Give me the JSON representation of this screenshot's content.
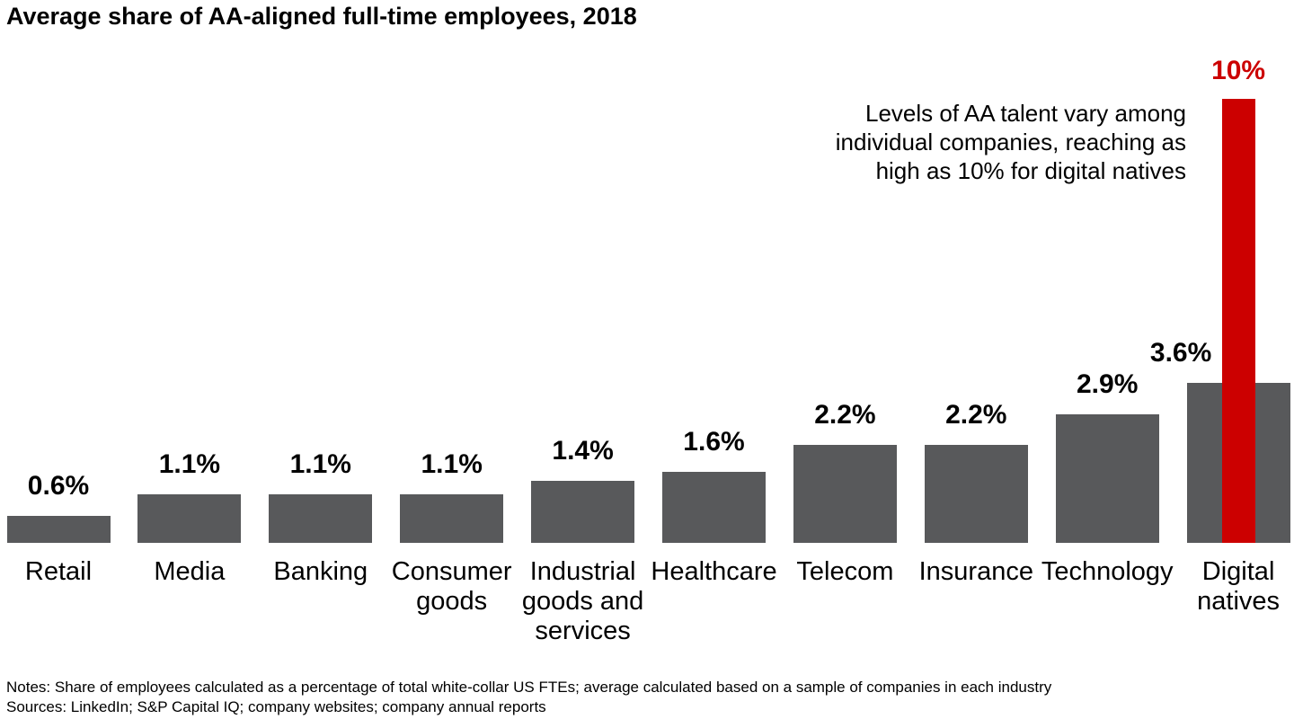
{
  "title": "Average share of AA-aligned full-time employees, 2018",
  "annotation": {
    "text": "Levels of AA talent vary among\nindividual companies, reaching as\nhigh as 10% for digital natives"
  },
  "chart_data": {
    "type": "bar",
    "title": "Average share of AA-aligned full-time employees, 2018",
    "unit": "percent",
    "categories": [
      "Retail",
      "Media",
      "Banking",
      "Consumer goods",
      "Industrial goods and services",
      "Healthcare",
      "Telecom",
      "Insurance",
      "Technology",
      "Digital natives"
    ],
    "values": [
      0.6,
      1.1,
      1.1,
      1.1,
      1.4,
      1.6,
      2.2,
      2.2,
      2.9,
      3.6
    ],
    "value_labels": [
      "0.6%",
      "1.1%",
      "1.1%",
      "1.1%",
      "1.4%",
      "1.6%",
      "2.2%",
      "2.2%",
      "2.9%",
      "3.6%"
    ],
    "highlight_overlay": {
      "category": "Digital natives",
      "category_index": 9,
      "value": 10,
      "label": "10%",
      "meaning": "maximum level reached by individual digital-native companies"
    },
    "ylim": [
      0,
      10
    ],
    "bar_color": "#58595B",
    "highlight_color": "#CC0000",
    "grid": "off",
    "axes": "hidden",
    "legend": "none",
    "xlabel": "",
    "ylabel": ""
  },
  "footer": {
    "notes": "Notes: Share of employees calculated as a percentage of total white-collar US FTEs; average calculated based on a sample of companies in each industry",
    "sources": "Sources: LinkedIn; S&P Capital IQ; company websites; company annual reports"
  }
}
